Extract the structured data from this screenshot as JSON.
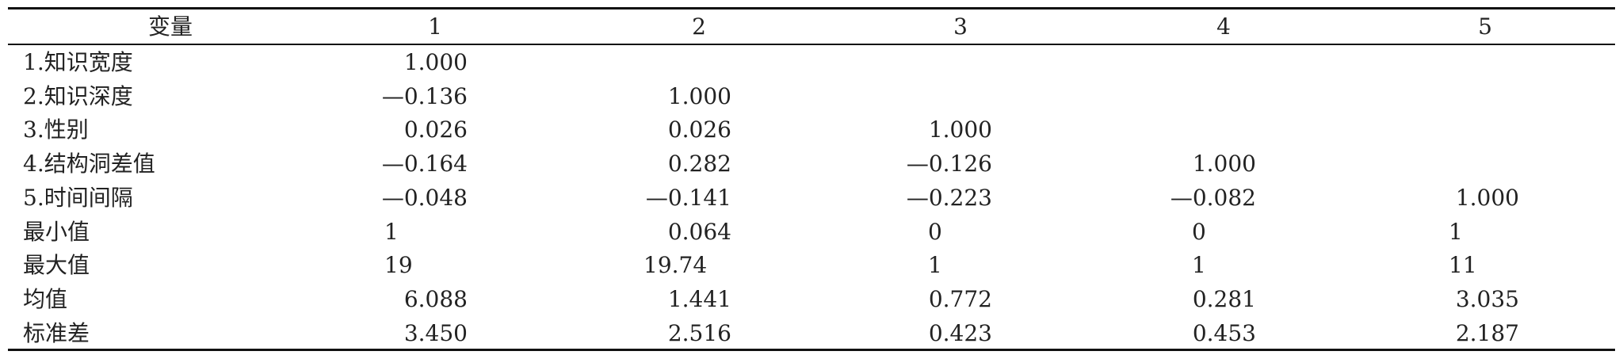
{
  "table": {
    "header": [
      "变量",
      "1",
      "2",
      "3",
      "4",
      "5"
    ],
    "rows": [
      [
        "1.知识宽度",
        "1.000"
      ],
      [
        "2.知识深度",
        "—0.136",
        "1.000"
      ],
      [
        "3.性别",
        "0.026",
        "0.026",
        "1.000"
      ],
      [
        "4.结构洞差值",
        "—0.164",
        "0.282",
        "—0.126",
        "1.000"
      ],
      [
        "5.时间间隔",
        "—0.048",
        "—0.141",
        "—0.223",
        "—0.082",
        "1.000"
      ],
      [
        "最小值",
        "1",
        "0.064",
        "0",
        "0",
        "1"
      ],
      [
        "最大值",
        "19",
        "19.74",
        "1",
        "1",
        "11"
      ],
      [
        "均值",
        "6.088",
        "1.441",
        "0.772",
        "0.281",
        "3.035"
      ],
      [
        "标准差",
        "3.450",
        "2.516",
        "0.423",
        "0.453",
        "2.187"
      ]
    ]
  }
}
